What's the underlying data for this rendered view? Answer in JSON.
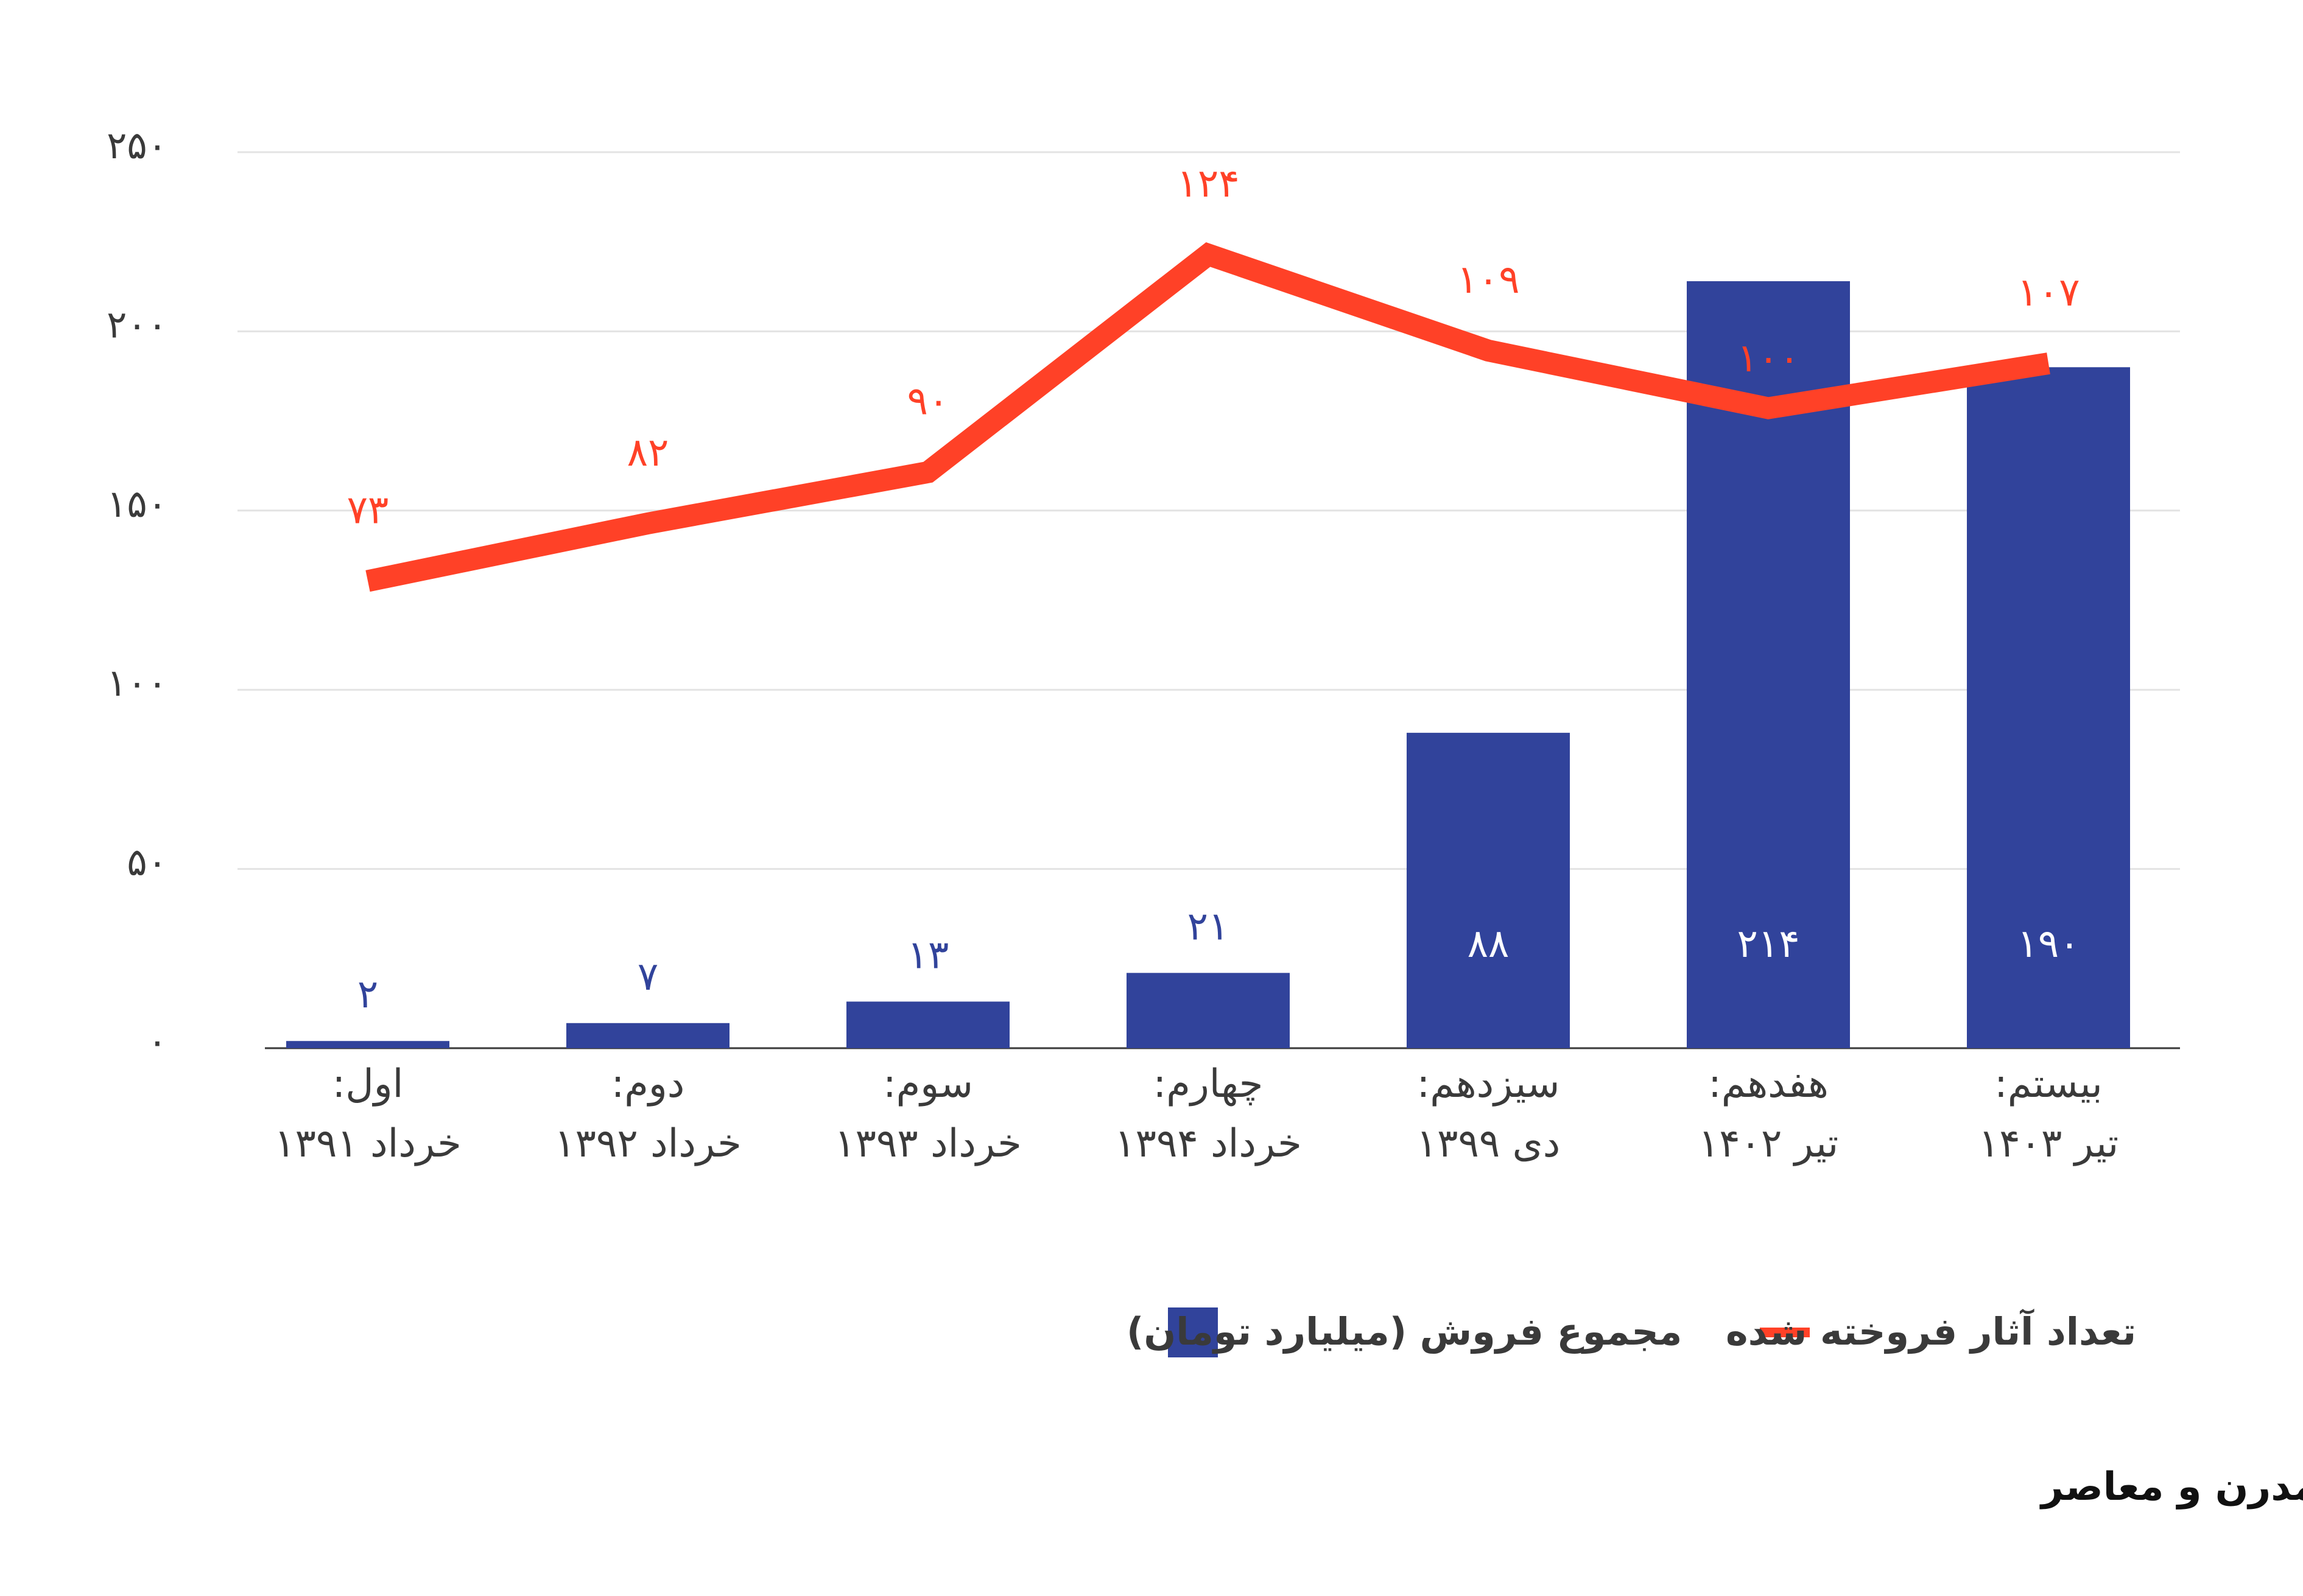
{
  "chart_data": {
    "type": "bar",
    "categories": [
      [
        "اول:",
        "خرداد ۱۳۹۱"
      ],
      [
        "دوم:",
        "خرداد ۱۳۹۲"
      ],
      [
        "سوم:",
        "خرداد ۱۳۹۳"
      ],
      [
        "چهارم:",
        "خرداد ۱۳۹۴"
      ],
      [
        "سیزدهم:",
        "دی ۱۳۹۹"
      ],
      [
        "هفدهم:",
        "تیر ۱۴۰۲"
      ],
      [
        "بیستم:",
        "تیر ۱۴۰۳"
      ]
    ],
    "series": [
      {
        "name": "مجموع فروش (میلیارد تومان)",
        "type": "bar",
        "color": "#31439b",
        "values": [
          2,
          7,
          13,
          21,
          88,
          214,
          190
        ],
        "labels": [
          "۲",
          "۷",
          "۱۳",
          "۲۱",
          "۸۸",
          "۲۱۴",
          "۱۹۰"
        ]
      },
      {
        "name": "تعداد آثار فروخته شده",
        "type": "line",
        "color": "#ff4127",
        "values": [
          73,
          82,
          90,
          124,
          109,
          100,
          107
        ],
        "labels": [
          "۷۳",
          "۸۲",
          "۹۰",
          "۱۲۴",
          "۱۰۹",
          "۱۰۰",
          "۱۰۷"
        ]
      }
    ],
    "yaxis_bar": {
      "range": [
        0,
        250
      ]
    },
    "yaxis_line": {
      "range": [
        0,
        140
      ],
      "visible": false
    },
    "y_ticks": [
      {
        "value": 0,
        "label": "۰"
      },
      {
        "value": 50,
        "label": "۵۰"
      },
      {
        "value": 100,
        "label": "۱۰۰"
      },
      {
        "value": 150,
        "label": "۱۵۰"
      },
      {
        "value": 200,
        "label": "۲۰۰"
      },
      {
        "value": 250,
        "label": "۲۵۰"
      }
    ],
    "grid": true,
    "legend_position": "bottom",
    "title": "مجموع فروش و تعداد آثار فروخته‌شده در هفت دوره هنر مدرن و معاصر",
    "title_position": "bottom"
  }
}
